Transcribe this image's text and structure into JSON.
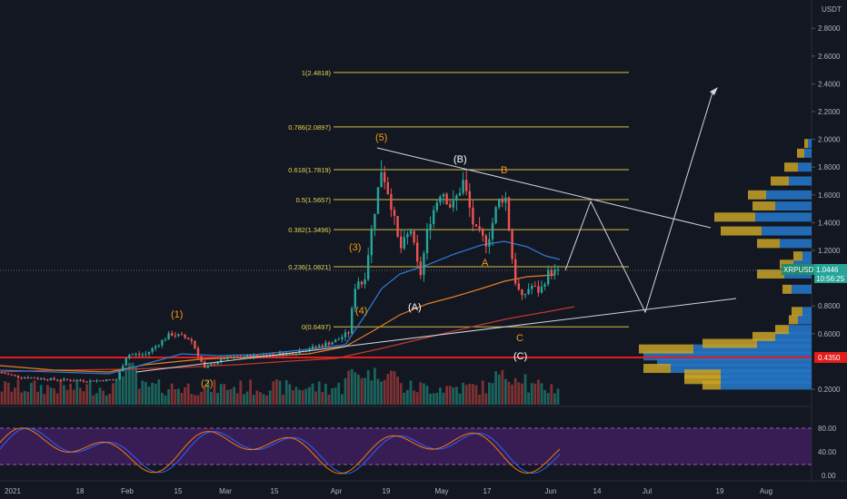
{
  "currency_label": "USDT",
  "chart_data": {
    "type": "candlestick",
    "symbol": "XRPUSDT",
    "last_price": "1.0446",
    "countdown": "10:56:25",
    "marked_price": "0.4350",
    "y_ticks": [
      "2.8000",
      "2.6000",
      "2.4000",
      "2.2000",
      "2.0000",
      "1.8000",
      "1.6000",
      "1.4000",
      "1.2000",
      "0.8000",
      "0.6000",
      "0.2000"
    ],
    "x_ticks": [
      "2021",
      "18",
      "Feb",
      "15",
      "Mar",
      "15",
      "Apr",
      "19",
      "May",
      "17",
      "Jun",
      "14",
      "Jul",
      "19",
      "Aug"
    ],
    "fib_levels": [
      {
        "label": "1(2.4818)",
        "value": 2.4818
      },
      {
        "label": "0.786(2.0897)",
        "value": 2.0897
      },
      {
        "label": "0.618(1.7819)",
        "value": 1.7819
      },
      {
        "label": "0.5(1.5657)",
        "value": 1.5657
      },
      {
        "label": "0.382(1.3496)",
        "value": 1.3496
      },
      {
        "label": "0.236(1.0821)",
        "value": 1.0821
      },
      {
        "label": "0(0.6497)",
        "value": 0.6497
      }
    ],
    "wave_labels_orange": [
      "(1)",
      "(2)",
      "(3)",
      "(4)",
      "(5)",
      "B",
      "A",
      "C"
    ],
    "wave_labels_white": [
      "(A)",
      "(B)",
      "(C)"
    ],
    "oscillator_ticks": [
      "80.00",
      "40.00",
      "0.00"
    ],
    "ohlc_by_week": [
      {
        "w": "Jan 1",
        "o": 0.24,
        "h": 0.34,
        "l": 0.2,
        "c": 0.28
      },
      {
        "w": "Jan 25",
        "o": 0.28,
        "h": 0.75,
        "l": 0.25,
        "c": 0.38
      },
      {
        "w": "Feb 8",
        "o": 0.38,
        "h": 0.65,
        "l": 0.38,
        "c": 0.55
      },
      {
        "w": "Feb 22",
        "o": 0.55,
        "h": 0.6,
        "l": 0.35,
        "c": 0.45
      },
      {
        "w": "Mar 8",
        "o": 0.45,
        "h": 0.5,
        "l": 0.42,
        "c": 0.47
      },
      {
        "w": "Mar 22",
        "o": 0.47,
        "h": 0.65,
        "l": 0.45,
        "c": 0.58
      },
      {
        "w": "Apr 5",
        "o": 0.58,
        "h": 1.4,
        "l": 0.55,
        "c": 1.1
      },
      {
        "w": "Apr 14",
        "o": 1.1,
        "h": 1.96,
        "l": 1.05,
        "c": 1.8
      },
      {
        "w": "Apr 19",
        "o": 1.8,
        "h": 1.85,
        "l": 1.0,
        "c": 1.05
      },
      {
        "w": "May 3",
        "o": 1.05,
        "h": 1.75,
        "l": 1.0,
        "c": 1.55
      },
      {
        "w": "May 17",
        "o": 1.55,
        "h": 1.7,
        "l": 0.75,
        "c": 0.95
      },
      {
        "w": "May 31",
        "o": 0.95,
        "h": 1.1,
        "l": 0.85,
        "c": 1.04
      }
    ]
  }
}
